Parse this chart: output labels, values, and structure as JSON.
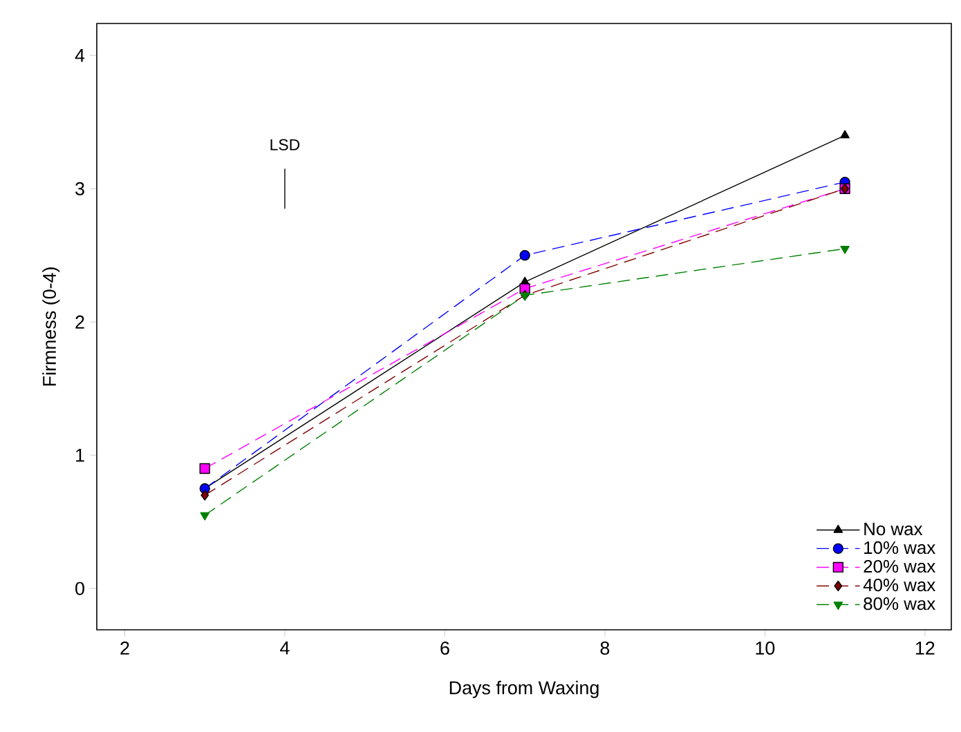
{
  "chart_data": {
    "type": "line",
    "xlabel": "Days from Waxing",
    "ylabel": "Firmness (0-4)",
    "x": [
      3,
      7,
      11
    ],
    "series": [
      {
        "name": "No wax",
        "color": "#000000",
        "values": [
          0.75,
          2.3,
          3.4
        ],
        "marker": "triangle",
        "line_style": "solid"
      },
      {
        "name": "10% wax",
        "color": "#0000ff",
        "values": [
          0.75,
          2.5,
          3.05
        ],
        "marker": "circle",
        "line_style": "dashed"
      },
      {
        "name": "20% wax",
        "color": "#ff00ff",
        "values": [
          0.9,
          2.25,
          3.0
        ],
        "marker": "square",
        "line_style": "dashed"
      },
      {
        "name": "40% wax",
        "color": "#800000",
        "values": [
          0.7,
          2.2,
          3.0
        ],
        "marker": "diamond",
        "line_style": "dashed"
      },
      {
        "name": "80% wax",
        "color": "#008000",
        "values": [
          0.55,
          2.2,
          2.55
        ],
        "marker": "triangle-down",
        "line_style": "dashed"
      },
      {
        "color": "#000000",
        "x": [
          4,
          4
        ],
        "values": [
          2.85,
          3.15
        ],
        "marker": "none",
        "line_style": "solid"
      }
    ],
    "annotations": [
      "LSD"
    ],
    "xlim": [
      1.65,
      12.33
    ],
    "ylim": [
      -0.31,
      4.24
    ],
    "xticks": [
      2,
      4,
      6,
      8,
      10,
      12
    ],
    "yticks": [
      0,
      1,
      2,
      3,
      4
    ],
    "grid": false,
    "legend": "bottom right"
  }
}
